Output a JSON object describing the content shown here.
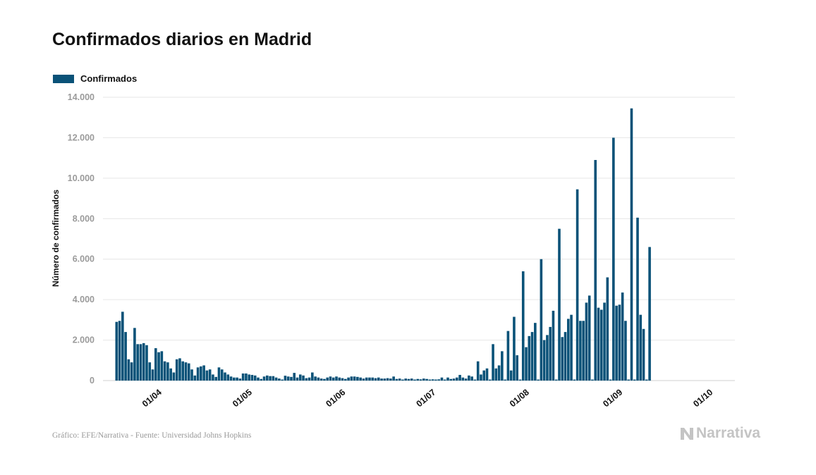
{
  "title": "Confirmados diarios en Madrid",
  "legend": {
    "label": "Confirmados",
    "color": "#0a5278"
  },
  "footer": "Gráfico: EFE/Narrativa - Fuente: Universidad Johns Hopkins",
  "brand": {
    "name": "Narrativa",
    "logo_icon": "narrativa-n-icon",
    "color": "#c4c4c4"
  },
  "colors": {
    "bar": "#0a5278",
    "grid": "#e6e6e6",
    "tick_label": "#9a9a9a",
    "axis_label": "#111111"
  },
  "chart_data": {
    "type": "bar",
    "title": "Confirmados diarios en Madrid",
    "ylabel": "Número de confirmados",
    "xlabel": "",
    "ylim": [
      0,
      14000
    ],
    "yticks": [
      0,
      2000,
      4000,
      6000,
      8000,
      10000,
      12000,
      14000
    ],
    "ytick_labels": [
      "0",
      "2.000",
      "4.000",
      "6.000",
      "8.000",
      "10.000",
      "12.000",
      "14.000"
    ],
    "xticks": [
      {
        "date": "2020-04-01",
        "label": "01/04"
      },
      {
        "date": "2020-05-01",
        "label": "01/05"
      },
      {
        "date": "2020-06-01",
        "label": "01/06"
      },
      {
        "date": "2020-07-01",
        "label": "01/07"
      },
      {
        "date": "2020-08-01",
        "label": "01/08"
      },
      {
        "date": "2020-09-01",
        "label": "01/09"
      },
      {
        "date": "2020-10-01",
        "label": "01/10"
      }
    ],
    "grid": true,
    "legend_position": "top-left",
    "series": [
      {
        "name": "Confirmados",
        "color": "#0a5278",
        "points": [
          [
            "2020-03-22",
            2900
          ],
          [
            "2020-03-23",
            2950
          ],
          [
            "2020-03-24",
            3400
          ],
          [
            "2020-03-25",
            2400
          ],
          [
            "2020-03-26",
            1050
          ],
          [
            "2020-03-27",
            900
          ],
          [
            "2020-03-28",
            2600
          ],
          [
            "2020-03-29",
            1800
          ],
          [
            "2020-03-30",
            1800
          ],
          [
            "2020-03-31",
            1850
          ],
          [
            "2020-04-01",
            1750
          ],
          [
            "2020-04-02",
            900
          ],
          [
            "2020-04-03",
            550
          ],
          [
            "2020-04-04",
            1600
          ],
          [
            "2020-04-05",
            1400
          ],
          [
            "2020-04-06",
            1450
          ],
          [
            "2020-04-07",
            950
          ],
          [
            "2020-04-08",
            900
          ],
          [
            "2020-04-09",
            600
          ],
          [
            "2020-04-10",
            400
          ],
          [
            "2020-04-11",
            1050
          ],
          [
            "2020-04-12",
            1100
          ],
          [
            "2020-04-13",
            950
          ],
          [
            "2020-04-14",
            900
          ],
          [
            "2020-04-15",
            850
          ],
          [
            "2020-04-16",
            550
          ],
          [
            "2020-04-17",
            250
          ],
          [
            "2020-04-18",
            650
          ],
          [
            "2020-04-19",
            700
          ],
          [
            "2020-04-20",
            750
          ],
          [
            "2020-04-21",
            500
          ],
          [
            "2020-04-22",
            550
          ],
          [
            "2020-04-23",
            300
          ],
          [
            "2020-04-24",
            180
          ],
          [
            "2020-04-25",
            650
          ],
          [
            "2020-04-26",
            550
          ],
          [
            "2020-04-27",
            400
          ],
          [
            "2020-04-28",
            300
          ],
          [
            "2020-04-29",
            200
          ],
          [
            "2020-04-30",
            150
          ],
          [
            "2020-05-01",
            150
          ],
          [
            "2020-05-02",
            100
          ],
          [
            "2020-05-03",
            350
          ],
          [
            "2020-05-04",
            350
          ],
          [
            "2020-05-05",
            300
          ],
          [
            "2020-05-06",
            280
          ],
          [
            "2020-05-07",
            250
          ],
          [
            "2020-05-08",
            150
          ],
          [
            "2020-05-09",
            80
          ],
          [
            "2020-05-10",
            200
          ],
          [
            "2020-05-11",
            250
          ],
          [
            "2020-05-12",
            220
          ],
          [
            "2020-05-13",
            220
          ],
          [
            "2020-05-14",
            150
          ],
          [
            "2020-05-15",
            100
          ],
          [
            "2020-05-16",
            50
          ],
          [
            "2020-05-17",
            240
          ],
          [
            "2020-05-18",
            200
          ],
          [
            "2020-05-19",
            180
          ],
          [
            "2020-05-20",
            380
          ],
          [
            "2020-05-21",
            150
          ],
          [
            "2020-05-22",
            300
          ],
          [
            "2020-05-23",
            250
          ],
          [
            "2020-05-24",
            120
          ],
          [
            "2020-05-25",
            150
          ],
          [
            "2020-05-26",
            400
          ],
          [
            "2020-05-27",
            200
          ],
          [
            "2020-05-28",
            150
          ],
          [
            "2020-05-29",
            100
          ],
          [
            "2020-05-30",
            80
          ],
          [
            "2020-05-31",
            150
          ],
          [
            "2020-06-01",
            200
          ],
          [
            "2020-06-02",
            150
          ],
          [
            "2020-06-03",
            200
          ],
          [
            "2020-06-04",
            150
          ],
          [
            "2020-06-05",
            120
          ],
          [
            "2020-06-06",
            80
          ],
          [
            "2020-06-07",
            150
          ],
          [
            "2020-06-08",
            200
          ],
          [
            "2020-06-09",
            200
          ],
          [
            "2020-06-10",
            180
          ],
          [
            "2020-06-11",
            150
          ],
          [
            "2020-06-12",
            100
          ],
          [
            "2020-06-13",
            150
          ],
          [
            "2020-06-14",
            150
          ],
          [
            "2020-06-15",
            150
          ],
          [
            "2020-06-16",
            120
          ],
          [
            "2020-06-17",
            150
          ],
          [
            "2020-06-18",
            100
          ],
          [
            "2020-06-19",
            100
          ],
          [
            "2020-06-20",
            120
          ],
          [
            "2020-06-21",
            100
          ],
          [
            "2020-06-22",
            200
          ],
          [
            "2020-06-23",
            80
          ],
          [
            "2020-06-24",
            100
          ],
          [
            "2020-06-25",
            50
          ],
          [
            "2020-06-26",
            100
          ],
          [
            "2020-06-27",
            80
          ],
          [
            "2020-06-28",
            100
          ],
          [
            "2020-06-29",
            50
          ],
          [
            "2020-06-30",
            80
          ],
          [
            "2020-07-01",
            60
          ],
          [
            "2020-07-02",
            100
          ],
          [
            "2020-07-03",
            80
          ],
          [
            "2020-07-04",
            50
          ],
          [
            "2020-07-05",
            60
          ],
          [
            "2020-07-06",
            50
          ],
          [
            "2020-07-07",
            60
          ],
          [
            "2020-07-08",
            150
          ],
          [
            "2020-07-09",
            50
          ],
          [
            "2020-07-10",
            150
          ],
          [
            "2020-07-11",
            80
          ],
          [
            "2020-07-12",
            100
          ],
          [
            "2020-07-13",
            150
          ],
          [
            "2020-07-14",
            280
          ],
          [
            "2020-07-15",
            150
          ],
          [
            "2020-07-16",
            100
          ],
          [
            "2020-07-17",
            250
          ],
          [
            "2020-07-18",
            200
          ],
          [
            "2020-07-19",
            50
          ],
          [
            "2020-07-20",
            950
          ],
          [
            "2020-07-21",
            300
          ],
          [
            "2020-07-22",
            500
          ],
          [
            "2020-07-23",
            600
          ],
          [
            "2020-07-24",
            50
          ],
          [
            "2020-07-25",
            1800
          ],
          [
            "2020-07-26",
            600
          ],
          [
            "2020-07-27",
            750
          ],
          [
            "2020-07-28",
            1450
          ],
          [
            "2020-07-29",
            50
          ],
          [
            "2020-07-30",
            2450
          ],
          [
            "2020-07-31",
            500
          ],
          [
            "2020-08-01",
            3150
          ],
          [
            "2020-08-02",
            1250
          ],
          [
            "2020-08-03",
            50
          ],
          [
            "2020-08-04",
            5400
          ],
          [
            "2020-08-05",
            1650
          ],
          [
            "2020-08-06",
            2200
          ],
          [
            "2020-08-07",
            2400
          ],
          [
            "2020-08-08",
            2850
          ],
          [
            "2020-08-09",
            50
          ],
          [
            "2020-08-10",
            6000
          ],
          [
            "2020-08-11",
            2000
          ],
          [
            "2020-08-12",
            2250
          ],
          [
            "2020-08-13",
            2650
          ],
          [
            "2020-08-14",
            3450
          ],
          [
            "2020-08-15",
            50
          ],
          [
            "2020-08-16",
            7500
          ],
          [
            "2020-08-17",
            2150
          ],
          [
            "2020-08-18",
            2400
          ],
          [
            "2020-08-19",
            3050
          ],
          [
            "2020-08-20",
            3250
          ],
          [
            "2020-08-21",
            50
          ],
          [
            "2020-08-22",
            9450
          ],
          [
            "2020-08-23",
            2950
          ],
          [
            "2020-08-24",
            2950
          ],
          [
            "2020-08-25",
            3850
          ],
          [
            "2020-08-26",
            4200
          ],
          [
            "2020-08-27",
            50
          ],
          [
            "2020-08-28",
            10900
          ],
          [
            "2020-08-29",
            3600
          ],
          [
            "2020-08-30",
            3500
          ],
          [
            "2020-08-31",
            3850
          ],
          [
            "2020-09-01",
            5100
          ],
          [
            "2020-09-02",
            50
          ],
          [
            "2020-09-03",
            12000
          ],
          [
            "2020-09-04",
            3700
          ],
          [
            "2020-09-05",
            3750
          ],
          [
            "2020-09-06",
            4350
          ],
          [
            "2020-09-07",
            2950
          ],
          [
            "2020-09-08",
            50
          ],
          [
            "2020-09-09",
            13450
          ],
          [
            "2020-09-10",
            50
          ],
          [
            "2020-09-11",
            8050
          ],
          [
            "2020-09-12",
            3250
          ],
          [
            "2020-09-13",
            2550
          ],
          [
            "2020-09-14",
            50
          ],
          [
            "2020-09-15",
            6600
          ]
        ]
      }
    ]
  }
}
